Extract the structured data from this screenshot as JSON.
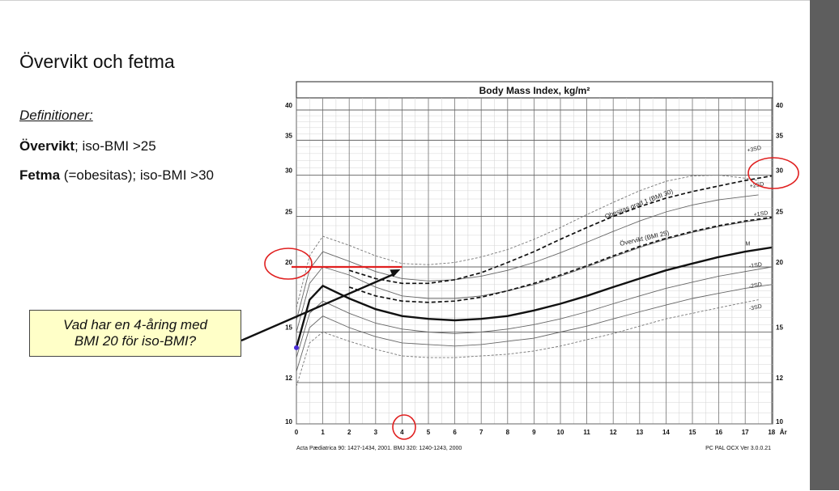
{
  "slide": {
    "title": "Övervikt och fetma",
    "definitions_heading": "Definitioner:",
    "definitions": [
      {
        "term": "Övervikt",
        "rest": "; iso-BMI >25"
      },
      {
        "term": "Fetma",
        "rest": " (=obesitas); iso-BMI >30"
      }
    ],
    "callout_line1": "Vad har en 4-åring med",
    "callout_line2": "BMI 20 för iso-BMI?"
  },
  "colors": {
    "callout_bg": "#ffffc8",
    "highlight_red": "#e02020",
    "arrow": "#111111",
    "dot": "#4a2cd6",
    "side_panel": "#5e5e5e"
  },
  "chart_data": {
    "type": "line",
    "title": "Body Mass Index, kg/m²",
    "x_ticks": [
      0,
      1,
      2,
      3,
      4,
      5,
      6,
      7,
      8,
      9,
      10,
      11,
      12,
      13,
      14,
      15,
      16,
      17,
      18
    ],
    "x_unit_label": "År",
    "y_ticks": [
      10,
      12,
      15,
      20,
      25,
      30,
      35,
      40
    ],
    "y_scale": "log",
    "xlim": [
      0,
      18
    ],
    "ylim": [
      10,
      40
    ],
    "grid": true,
    "series": [
      {
        "name": "+3SD",
        "style": "dashed-thin",
        "x": [
          0,
          0.5,
          1,
          2,
          3,
          4,
          5,
          6,
          7,
          8,
          9,
          10,
          11,
          12,
          13,
          14,
          15,
          16,
          17,
          17.5
        ],
        "y": [
          16.7,
          21.0,
          22.9,
          22.0,
          21.0,
          20.3,
          20.2,
          20.4,
          20.9,
          21.6,
          22.6,
          23.8,
          25.2,
          26.6,
          28.0,
          29.2,
          29.9,
          30.0,
          29.6,
          29.3
        ]
      },
      {
        "name": "+2SD",
        "style": "solid-thin",
        "x": [
          0,
          0.5,
          1,
          2,
          3,
          4,
          5,
          6,
          7,
          8,
          9,
          10,
          11,
          12,
          13,
          14,
          15,
          16,
          17,
          17.5
        ],
        "y": [
          15.8,
          19.8,
          21.4,
          20.5,
          19.6,
          19.0,
          18.8,
          18.9,
          19.2,
          19.7,
          20.4,
          21.3,
          22.3,
          23.4,
          24.5,
          25.5,
          26.3,
          26.9,
          27.3,
          27.5
        ]
      },
      {
        "name": "Obesitas grad 1 (BMI 30)",
        "style": "dashed-bold",
        "x": [
          2,
          3,
          4,
          5,
          6,
          7,
          8,
          9,
          10,
          11,
          12,
          13,
          14,
          15,
          16,
          17,
          18
        ],
        "y": [
          19.7,
          19.0,
          18.6,
          18.6,
          18.9,
          19.5,
          20.4,
          21.4,
          22.6,
          23.8,
          25.0,
          26.1,
          27.1,
          27.9,
          28.6,
          29.3,
          29.9
        ]
      },
      {
        "name": "+1SD",
        "style": "solid-thin",
        "x": [
          0,
          0.5,
          1,
          2,
          3,
          4,
          5,
          6,
          7,
          8,
          9,
          10,
          11,
          12,
          13,
          14,
          15,
          16,
          17,
          18
        ],
        "y": [
          15.0,
          18.6,
          20.0,
          19.3,
          18.3,
          17.6,
          17.4,
          17.4,
          17.6,
          18.0,
          18.5,
          19.2,
          20.0,
          20.9,
          21.8,
          22.6,
          23.3,
          23.9,
          24.4,
          24.8
        ]
      },
      {
        "name": "Övervikt (BMI 25)",
        "style": "dashed-bold",
        "x": [
          2,
          3,
          4,
          5,
          6,
          7,
          8,
          9,
          10,
          11,
          12,
          13,
          14,
          15,
          16,
          17,
          18
        ],
        "y": [
          18.3,
          17.6,
          17.2,
          17.1,
          17.2,
          17.5,
          18.0,
          18.6,
          19.3,
          20.1,
          21.0,
          21.9,
          22.7,
          23.4,
          24.0,
          24.5,
          24.9
        ]
      },
      {
        "name": "M",
        "style": "solid-bold",
        "x": [
          0,
          0.5,
          1,
          2,
          3,
          4,
          5,
          6,
          7,
          8,
          9,
          10,
          11,
          12,
          13,
          14,
          15,
          16,
          17,
          18
        ],
        "y": [
          14.0,
          17.3,
          18.4,
          17.4,
          16.6,
          16.1,
          15.9,
          15.8,
          15.9,
          16.1,
          16.5,
          17.0,
          17.6,
          18.3,
          19.0,
          19.7,
          20.3,
          20.9,
          21.4,
          21.8
        ]
      },
      {
        "name": "-1SD",
        "style": "solid-thin",
        "x": [
          0,
          0.5,
          1,
          2,
          3,
          4,
          5,
          6,
          7,
          8,
          9,
          10,
          11,
          12,
          13,
          14,
          15,
          16,
          17,
          18
        ],
        "y": [
          13.4,
          16.3,
          17.2,
          16.3,
          15.6,
          15.2,
          15.0,
          14.9,
          15.0,
          15.2,
          15.5,
          15.9,
          16.4,
          17.0,
          17.6,
          18.2,
          18.7,
          19.2,
          19.6,
          20.0
        ]
      },
      {
        "name": "-2SD",
        "style": "solid-thin",
        "x": [
          0,
          0.5,
          1,
          2,
          3,
          4,
          5,
          6,
          7,
          8,
          9,
          10,
          11,
          12,
          13,
          14,
          15,
          16,
          17,
          18
        ],
        "y": [
          12.6,
          15.3,
          16.1,
          15.3,
          14.7,
          14.3,
          14.2,
          14.1,
          14.2,
          14.4,
          14.6,
          15.0,
          15.4,
          15.9,
          16.4,
          16.9,
          17.4,
          17.8,
          18.2,
          18.5
        ]
      },
      {
        "name": "-3SD",
        "style": "dashed-thin",
        "x": [
          0,
          0.5,
          1,
          2,
          3,
          4,
          5,
          6,
          7,
          8,
          9,
          10,
          11,
          12,
          13,
          14,
          15,
          16,
          17,
          17.5
        ],
        "y": [
          11.8,
          14.3,
          15.0,
          14.4,
          13.9,
          13.5,
          13.4,
          13.4,
          13.5,
          13.6,
          13.8,
          14.1,
          14.5,
          14.9,
          15.4,
          15.9,
          16.3,
          16.7,
          17.1,
          17.3
        ]
      }
    ],
    "line_labels": [
      "+3SD",
      "+2SD",
      "+1SD",
      "M",
      "-1SD",
      "-2SD",
      "-3SD",
      "Obesitas grad 1 (BMI 30)",
      "Övervikt (BMI 25)"
    ],
    "footer_left": "Acta Pædiatrica 90: 1427-1434, 2001.  BMJ 320: 1240-1243, 2000",
    "footer_right": "PC PAL OCX Ver 3.0.0.21",
    "annotations": {
      "highlight_age": 4,
      "highlight_bmi": 20,
      "dot_x": 0,
      "dot_y": 14.0,
      "ringed_right_value": 30
    }
  }
}
